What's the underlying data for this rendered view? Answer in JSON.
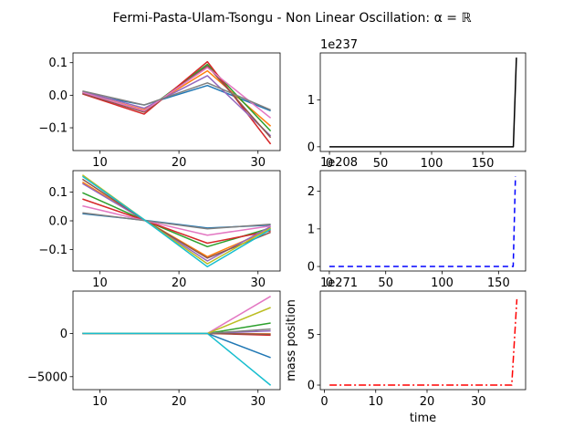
{
  "figure": {
    "title": "Fermi-Pasta-Ulam-Tsongu - Non Linear Oscillation: α = ℝ",
    "background": "#ffffff"
  },
  "palette": [
    "#1f77b4",
    "#ff7f0e",
    "#2ca02c",
    "#d62728",
    "#9467bd",
    "#8c564b",
    "#e377c2",
    "#7f7f7f",
    "#bcbd22",
    "#17becf"
  ],
  "chart_data": [
    {
      "id": "left-top",
      "type": "line",
      "x": [
        7.8,
        15.6,
        23.6,
        31.6
      ],
      "xlim": [
        6.6,
        32.8
      ],
      "ylim": [
        -0.17,
        0.13
      ],
      "xticks": [
        10,
        20,
        30
      ],
      "yticks": [
        -0.1,
        0.0,
        0.1
      ],
      "ytick_labels": [
        "−0.1",
        "0.0",
        "0.1"
      ],
      "series": [
        {
          "values": [
            0.005,
            -0.03,
            0.03,
            -0.048
          ]
        },
        {
          "values": [
            0.008,
            -0.045,
            0.075,
            -0.095
          ]
        },
        {
          "values": [
            0.01,
            -0.05,
            0.095,
            -0.11
          ]
        },
        {
          "values": [
            0.004,
            -0.058,
            0.103,
            -0.15
          ]
        },
        {
          "values": [
            0.012,
            -0.04,
            0.06,
            -0.125
          ]
        },
        {
          "values": [
            0.006,
            -0.052,
            0.09,
            -0.13
          ]
        },
        {
          "values": [
            0.009,
            -0.048,
            0.085,
            -0.07
          ]
        },
        {
          "values": [
            0.013,
            -0.03,
            0.038,
            -0.045
          ]
        }
      ]
    },
    {
      "id": "left-middle",
      "type": "line",
      "x": [
        7.8,
        15.6,
        23.6,
        31.6
      ],
      "xlim": [
        6.6,
        32.8
      ],
      "ylim": [
        -0.175,
        0.175
      ],
      "xticks": [
        10,
        20,
        30
      ],
      "yticks": [
        -0.1,
        0.0,
        0.1
      ],
      "ytick_labels": [
        "−0.1",
        "0.0",
        "0.1"
      ],
      "series": [
        {
          "values": [
            0.025,
            0.002,
            -0.025,
            -0.015
          ]
        },
        {
          "values": [
            0.135,
            0.003,
            -0.125,
            -0.03
          ]
        },
        {
          "values": [
            0.098,
            0.002,
            -0.09,
            -0.025
          ]
        },
        {
          "values": [
            0.076,
            0.002,
            -0.078,
            -0.035
          ]
        },
        {
          "values": [
            0.13,
            0.003,
            -0.14,
            -0.02
          ]
        },
        {
          "values": [
            0.145,
            0.003,
            -0.13,
            -0.04
          ]
        },
        {
          "values": [
            0.052,
            0.001,
            -0.05,
            -0.018
          ]
        },
        {
          "values": [
            0.028,
            0.001,
            -0.028,
            -0.012
          ]
        },
        {
          "values": [
            0.16,
            0.004,
            -0.15,
            -0.025
          ]
        },
        {
          "values": [
            0.155,
            0.004,
            -0.16,
            -0.03
          ]
        }
      ]
    },
    {
      "id": "left-bottom",
      "type": "line",
      "x": [
        7.8,
        15.6,
        23.6,
        31.6
      ],
      "xlim": [
        6.6,
        32.8
      ],
      "ylim": [
        -6500,
        4900
      ],
      "xticks": [
        10,
        20,
        30
      ],
      "yticks": [
        -5000,
        0
      ],
      "ytick_labels": [
        "−5000",
        "0"
      ],
      "series": [
        {
          "values": [
            0,
            0,
            0,
            -2800
          ]
        },
        {
          "values": [
            0,
            0,
            0,
            -50
          ]
        },
        {
          "values": [
            0,
            0,
            0,
            1200
          ]
        },
        {
          "values": [
            0,
            0,
            0,
            -200
          ]
        },
        {
          "values": [
            0,
            0,
            0,
            300
          ]
        },
        {
          "values": [
            0,
            0,
            0,
            -100
          ]
        },
        {
          "values": [
            0,
            0,
            0,
            4300
          ]
        },
        {
          "values": [
            0,
            0,
            0,
            500
          ]
        },
        {
          "values": [
            0,
            0,
            0,
            3000
          ]
        },
        {
          "values": [
            0,
            0,
            0,
            -6000
          ]
        }
      ]
    },
    {
      "id": "right-top",
      "type": "line",
      "x": [
        0,
        2,
        180,
        183
      ],
      "values": [
        0,
        0,
        0,
        1.9
      ],
      "color": "#000000",
      "dash": "",
      "xlim": [
        -9,
        192
      ],
      "ylim": [
        -0.1,
        2.0
      ],
      "xticks": [
        0,
        50,
        100,
        150
      ],
      "yticks": [
        0,
        1
      ],
      "offset_text": "1e237"
    },
    {
      "id": "right-middle",
      "type": "line",
      "x": [
        0,
        2,
        163,
        165
      ],
      "values": [
        0,
        0,
        0,
        2.4
      ],
      "color": "#0000ff",
      "dash": "6,4",
      "xlim": [
        -8,
        174
      ],
      "ylim": [
        -0.12,
        2.55
      ],
      "xticks": [
        0,
        50,
        100,
        150
      ],
      "yticks": [
        0,
        1,
        2
      ],
      "offset_text": "1e208"
    },
    {
      "id": "right-bottom",
      "type": "line",
      "x": [
        1,
        36.5,
        37.5
      ],
      "values": [
        0,
        0,
        8.5
      ],
      "color": "#ff0000",
      "dash": "8,3,2,3",
      "xlim": [
        -0.8,
        39.2
      ],
      "ylim": [
        -0.45,
        9.3
      ],
      "xticks": [
        0,
        10,
        20,
        30
      ],
      "yticks": [
        0,
        5
      ],
      "offset_text": "1e271",
      "xlabel": "time",
      "ylabel": "mass position"
    }
  ]
}
